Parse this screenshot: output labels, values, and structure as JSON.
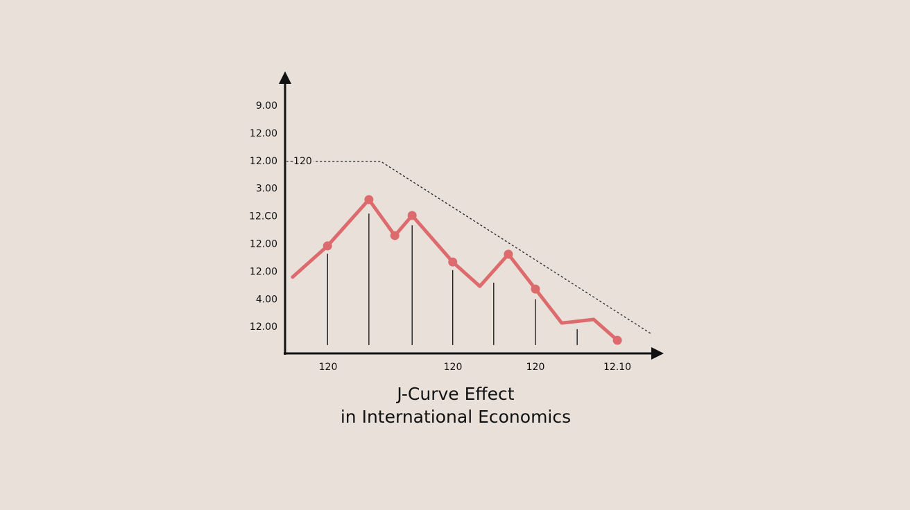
{
  "chart_data": {
    "type": "line",
    "title_lines": [
      "J-Curve Effect",
      "in International Economics"
    ],
    "y_axis_labels": [
      "9.00",
      "12.00",
      "12.00",
      "3.00",
      "12.C0",
      "12.00",
      "12.00",
      "4.00",
      "12.00"
    ],
    "x_axis_labels": [
      "120",
      "120",
      "120",
      "12.10"
    ],
    "annotation": "-120",
    "xlim": [
      0,
      100
    ],
    "ylim": [
      0,
      100
    ],
    "color": "#dd6b6e",
    "series": [
      {
        "x": [
          2.0,
          11.3,
          22.3,
          29.2,
          33.8,
          44.6,
          51.8,
          59.4,
          66.6,
          73.6,
          82.1,
          88.4
        ],
        "values": [
          27.4,
          38.6,
          55.2,
          42.3,
          49.5,
          32.8,
          24.1,
          35.6,
          23.1,
          10.9,
          12.2,
          4.7
        ]
      }
    ],
    "markers": {
      "x": [
        11.3,
        22.3,
        29.2,
        33.8,
        44.6,
        59.4,
        66.6,
        88.4
      ],
      "values": [
        38.6,
        55.2,
        42.3,
        49.5,
        32.8,
        35.6,
        23.1,
        4.7
      ]
    },
    "stems": {
      "x": [
        11.3,
        22.3,
        33.8,
        44.6,
        55.5,
        66.6,
        77.7
      ],
      "values": [
        35.8,
        50.2,
        46.0,
        29.9,
        25.4,
        19.4,
        8.7
      ],
      "base": 3.0
    },
    "dashed_line": {
      "x": [
        0.4,
        25.5,
        97.2
      ],
      "values": [
        68.9,
        68.9,
        7.2
      ]
    }
  }
}
